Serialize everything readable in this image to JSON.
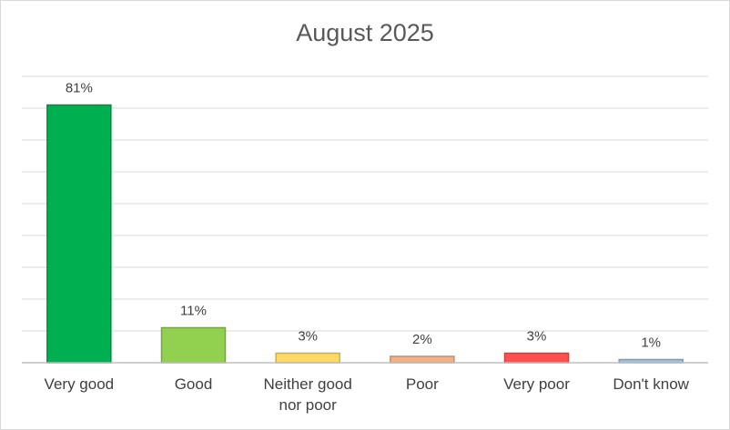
{
  "chart_data": {
    "type": "bar",
    "title": "August 2025",
    "categories": [
      "Very good",
      "Good",
      "Neither good nor poor",
      "Poor",
      "Very poor",
      "Don't know"
    ],
    "values": [
      81,
      11,
      3,
      2,
      3,
      1
    ],
    "value_labels": [
      "81%",
      "11%",
      "3%",
      "2%",
      "3%",
      "1%"
    ],
    "colors": [
      "#00b050",
      "#92d050",
      "#ffd966",
      "#f4b183",
      "#ff5050",
      "#9dc3e6"
    ],
    "ylim": [
      0,
      90
    ],
    "yticks": [
      0,
      10,
      20,
      30,
      40,
      50,
      60,
      70,
      80,
      90
    ],
    "grid": true
  }
}
